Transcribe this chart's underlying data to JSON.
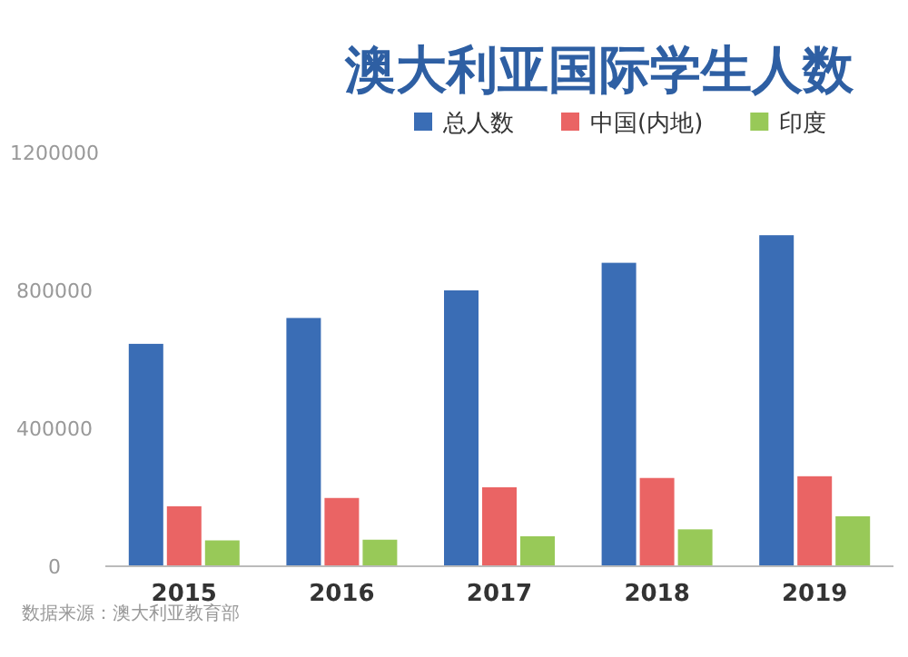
{
  "chart_data": {
    "type": "bar",
    "title": "澳大利亚国际学生人数",
    "categories": [
      "2015",
      "2016",
      "2017",
      "2018",
      "2019"
    ],
    "series": [
      {
        "name": "总人数",
        "color": "#3a6db5",
        "values": [
          645000,
          720000,
          800000,
          880000,
          960000
        ]
      },
      {
        "name": "中国(内地)",
        "color": "#ea6464",
        "values": [
          174000,
          198000,
          229000,
          256000,
          261000
        ]
      },
      {
        "name": "印度",
        "color": "#98c958",
        "values": [
          75000,
          77000,
          87000,
          107000,
          145000
        ]
      }
    ],
    "ylim": [
      0,
      1200000
    ],
    "yticks": [
      0,
      400000,
      800000,
      1200000
    ],
    "grid": false,
    "legend": "top right",
    "annotations": [
      "数据来源：澳大利亚教育部"
    ]
  }
}
